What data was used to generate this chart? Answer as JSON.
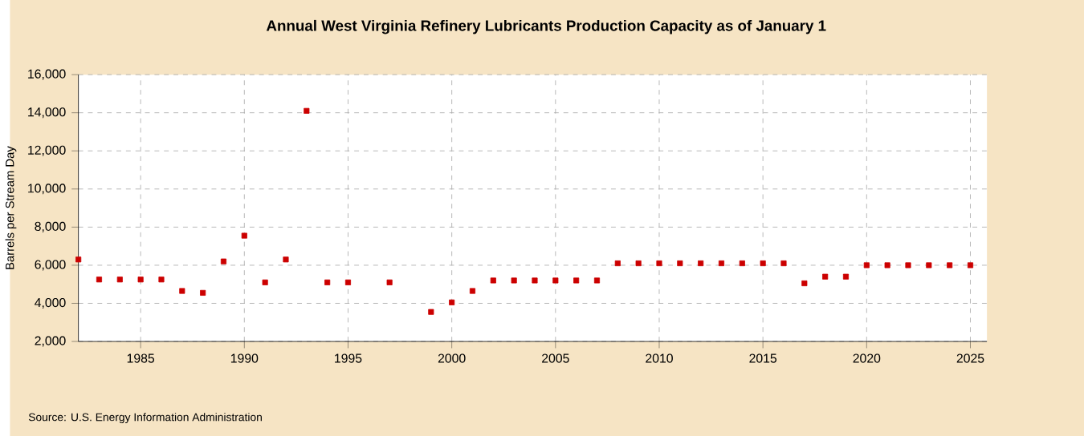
{
  "chart_data": {
    "type": "scatter",
    "title": "Annual West Virginia Refinery Lubricants Production Capacity as of January 1",
    "ylabel": "Barrels per Stream Day",
    "annotations": [
      "Source: U.S. Energy Information Administration"
    ],
    "x": [
      1982,
      1983,
      1984,
      1985,
      1986,
      1987,
      1988,
      1989,
      1990,
      1991,
      1992,
      1993,
      1994,
      1995,
      1997,
      1999,
      2000,
      2001,
      2002,
      2003,
      2004,
      2005,
      2006,
      2007,
      2008,
      2009,
      2010,
      2011,
      2012,
      2013,
      2014,
      2015,
      2016,
      2017,
      2018,
      2019,
      2020,
      2021,
      2022,
      2023,
      2024,
      2025
    ],
    "series": [
      {
        "color": "#cc0000",
        "values": [
          6300,
          5250,
          5250,
          5250,
          5250,
          4650,
          4550,
          6200,
          7550,
          5100,
          6300,
          14100,
          5100,
          5100,
          5100,
          3550,
          4050,
          4650,
          5200,
          5200,
          5200,
          5200,
          5200,
          5200,
          6100,
          6100,
          6100,
          6100,
          6100,
          6100,
          6100,
          6100,
          6100,
          5050,
          5400,
          5400,
          6000,
          6000,
          6000,
          6000,
          6000,
          6000
        ]
      }
    ],
    "xlim": [
      1982,
      2025.8
    ],
    "xticks": [
      1985,
      1990,
      1995,
      2000,
      2005,
      2010,
      2015,
      2020,
      2025
    ],
    "ylim": [
      2000,
      16000
    ],
    "yticks": [
      {
        "value": 2000,
        "label": "2,000"
      },
      {
        "value": 4000,
        "label": "4,000"
      },
      {
        "value": 6000,
        "label": "6,000"
      },
      {
        "value": 8000,
        "label": "8,000"
      },
      {
        "value": 10000,
        "label": "10,000"
      },
      {
        "value": 12000,
        "label": "12,000"
      },
      {
        "value": 14000,
        "label": "14,000"
      },
      {
        "value": 16000,
        "label": "16,000"
      }
    ],
    "grid": true,
    "marker": "square"
  }
}
